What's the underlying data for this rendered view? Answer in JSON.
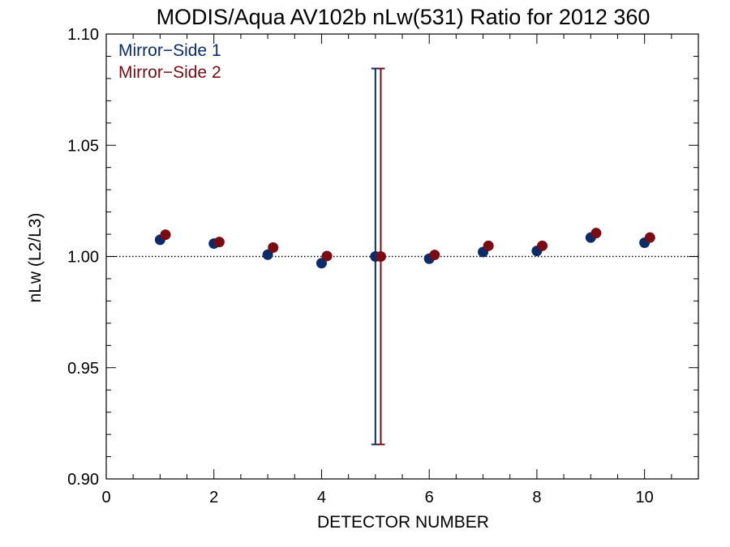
{
  "chart_data": {
    "type": "scatter",
    "title": "MODIS/Aqua AV102b nLw(531) Ratio for 2012 360",
    "xlabel": "DETECTOR NUMBER",
    "ylabel": "nLw (L2/L3)",
    "xlim": [
      0,
      11
    ],
    "ylim": [
      0.9,
      1.1
    ],
    "x_ticks": [
      0,
      2,
      4,
      6,
      8,
      10
    ],
    "x_tick_labels": [
      "0",
      "2",
      "4",
      "6",
      "8",
      "10"
    ],
    "y_ticks": [
      0.9,
      0.95,
      1.0,
      1.05,
      1.1
    ],
    "y_tick_labels": [
      "0.90",
      "0.95",
      "1.00",
      "1.05",
      "1.10"
    ],
    "reference_line": 1.0,
    "legend_position": "top-left",
    "series": [
      {
        "name": "Mirror−Side 1",
        "color": "#0b2c6b",
        "x": [
          1,
          2,
          3,
          4,
          5,
          6,
          7,
          8,
          9,
          10
        ],
        "y": [
          1.0075,
          1.0058,
          1.0008,
          0.997,
          1.0,
          0.999,
          1.002,
          1.0025,
          1.0085,
          1.0062
        ],
        "error_bars": [
          {
            "x": 5,
            "low": 0.9155,
            "high": 1.0845
          }
        ]
      },
      {
        "name": "Mirror−Side 2",
        "color": "#7a0b12",
        "x": [
          1.1,
          2.1,
          3.1,
          4.1,
          5.1,
          6.1,
          7.1,
          8.1,
          9.1,
          10.1
        ],
        "y": [
          1.0098,
          1.0065,
          1.004,
          1.0002,
          1.0,
          1.0007,
          1.0048,
          1.0048,
          1.0105,
          1.0085
        ],
        "error_bars": [
          {
            "x": 5.1,
            "low": 0.9155,
            "high": 1.0845
          }
        ]
      }
    ]
  }
}
